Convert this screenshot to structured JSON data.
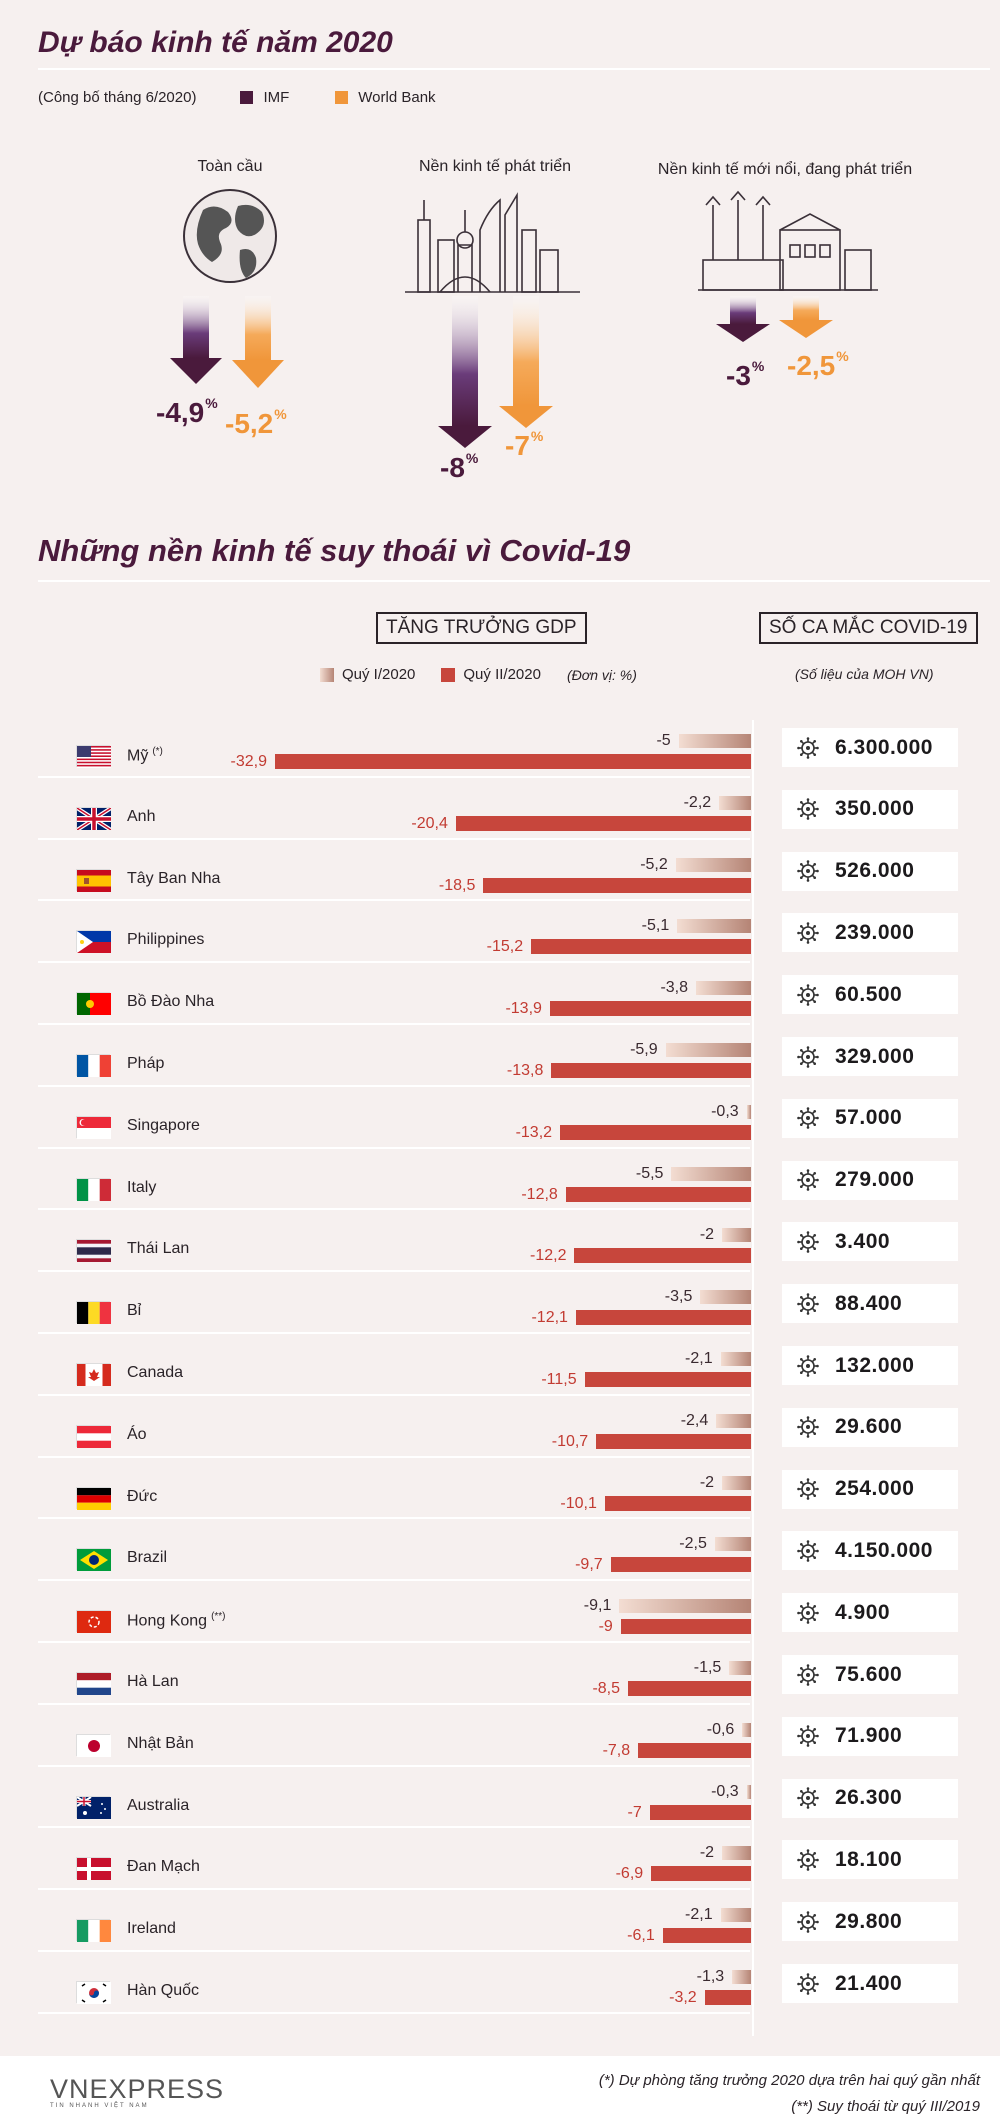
{
  "title": "Dự báo kinh tế năm 2020",
  "subtitle": "(Công bố tháng 6/2020)",
  "legend": {
    "imf": "IMF",
    "wb": "World Bank"
  },
  "colors": {
    "imf": "#4a1a3c",
    "wb": "#f0963a",
    "q1": "#c9a090",
    "q2": "#c7463c"
  },
  "forecast": {
    "groups": [
      {
        "label": "Toàn cầu",
        "imf": "-4,9",
        "wb": "-5,2"
      },
      {
        "label": "Nền kinh tế phát triển",
        "imf": "-8",
        "wb": "-7"
      },
      {
        "label": "Nền kinh tế mới nổi, đang phát triển",
        "imf": "-3",
        "wb": "-2,5"
      }
    ],
    "unit": "%"
  },
  "section2": {
    "title": "Những nền kinh tế suy thoái vì Covid-19",
    "gdp_label": "TĂNG TRƯỞNG GDP",
    "cases_label": "SỐ CA MẮC COVID-19",
    "q1_label": "Quý I/2020",
    "q2_label": "Quý II/2020",
    "unit_note": "(Đơn vị: %)",
    "cases_note": "(Số liệu của MOH VN)"
  },
  "chart_data": {
    "type": "bar",
    "categories": [
      "Mỹ",
      "Anh",
      "Tây Ban Nha",
      "Philippines",
      "Bồ Đào Nha",
      "Pháp",
      "Singapore",
      "Italy",
      "Thái Lan",
      "Bỉ",
      "Canada",
      "Áo",
      "Đức",
      "Brazil",
      "Hong Kong",
      "Hà Lan",
      "Nhật Bản",
      "Australia",
      "Đan Mạch",
      "Ireland",
      "Hàn Quốc"
    ],
    "category_notes": [
      "(*)",
      "",
      "",
      "",
      "",
      "",
      "",
      "",
      "",
      "",
      "",
      "",
      "",
      "",
      "(**)",
      "",
      "",
      "",
      "",
      "",
      ""
    ],
    "series": [
      {
        "name": "Quý I/2020",
        "values": [
          -5,
          -2.2,
          -5.2,
          -5.1,
          -3.8,
          -5.9,
          -0.3,
          -5.5,
          -2,
          -3.5,
          -2.1,
          -2.4,
          -2,
          -2.5,
          -9.1,
          -1.5,
          -0.6,
          -0.3,
          -2,
          -2.1,
          -1.3
        ],
        "labels": [
          "-5",
          "-2,2",
          "-5,2",
          "-5,1",
          "-3,8",
          "-5,9",
          "-0,3",
          "-5,5",
          "-2",
          "-3,5",
          "-2,1",
          "-2,4",
          "-2",
          "-2,5",
          "-9,1",
          "-1,5",
          "-0,6",
          "-0,3",
          "-2",
          "-2,1",
          "-1,3"
        ]
      },
      {
        "name": "Quý II/2020",
        "values": [
          -32.9,
          -20.4,
          -18.5,
          -15.2,
          -13.9,
          -13.8,
          -13.2,
          -12.8,
          -12.2,
          -12.1,
          -11.5,
          -10.7,
          -10.1,
          -9.7,
          -9,
          -8.5,
          -7.8,
          -7,
          -6.9,
          -6.1,
          -3.2
        ],
        "labels": [
          "-32,9",
          "-20,4",
          "-18,5",
          "-15,2",
          "-13,9",
          "-13,8",
          "-13,2",
          "-12,8",
          "-12,2",
          "-12,1",
          "-11,5",
          "-10,7",
          "-10,1",
          "-9,7",
          "-9",
          "-8,5",
          "-7,8",
          "-7",
          "-6,9",
          "-6,1",
          "-3,2"
        ]
      }
    ],
    "cases": [
      "6.300.000",
      "350.000",
      "526.000",
      "239.000",
      "60.500",
      "329.000",
      "57.000",
      "279.000",
      "3.400",
      "88.400",
      "132.000",
      "29.600",
      "254.000",
      "4.150.000",
      "4.900",
      "75.600",
      "71.900",
      "26.300",
      "18.100",
      "29.800",
      "21.400"
    ],
    "flags": [
      "us",
      "gb",
      "es",
      "ph",
      "pt",
      "fr",
      "sg",
      "it",
      "th",
      "be",
      "ca",
      "at",
      "de",
      "br",
      "hk",
      "nl",
      "jp",
      "au",
      "dk",
      "ie",
      "kr"
    ]
  },
  "footer": {
    "logo": "VNEXPRESS",
    "logo_sub": "TIN NHANH VIỆT NAM",
    "note1": "(*) Dự phòng tăng trưởng 2020 dựa trên hai quý gần nhất",
    "note2": "(**) Suy thoái từ quý III/2019"
  }
}
